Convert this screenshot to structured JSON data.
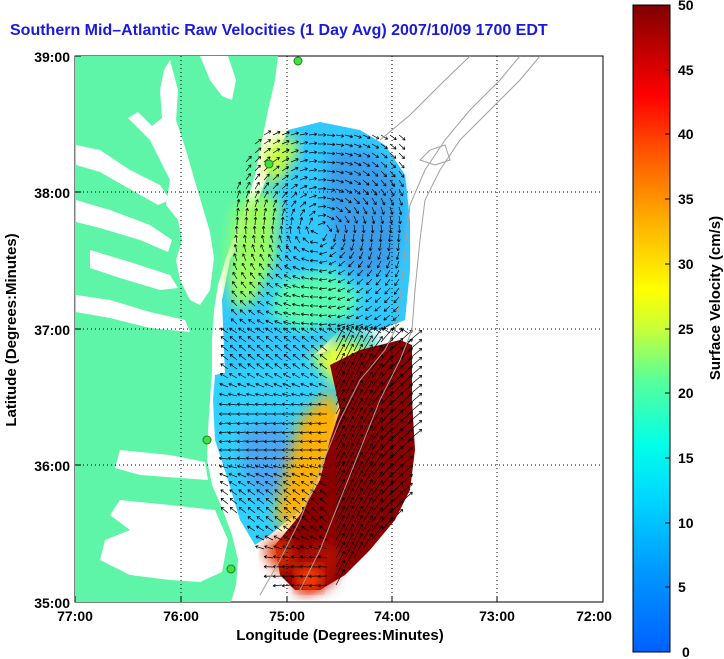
{
  "title": "Southern Mid–Atlantic Raw Velocities (1 Day Avg) 2007/10/09 1700 EDT",
  "map": {
    "xlabel": "Longitude (Degrees:Minutes)",
    "ylabel": "Latitude (Degrees:Minutes)",
    "x_ticks": [
      "77:00",
      "76:00",
      "75:00",
      "74:00",
      "73:00",
      "72:00"
    ],
    "y_ticks": [
      "39:00",
      "38:00",
      "37:00",
      "36:00",
      "35:00"
    ],
    "lon_range": [
      -77,
      -72
    ],
    "lat_range": [
      35,
      39
    ],
    "land_color": "#5ef5a8",
    "grid": "dotted"
  },
  "colorbar": {
    "label": "Surface Velocity (cm/s)",
    "ticks": [
      "50",
      "45",
      "40",
      "35",
      "30",
      "25",
      "20",
      "15",
      "10",
      "5",
      "0"
    ],
    "range": [
      0,
      50
    ],
    "colormap": "jet"
  }
}
